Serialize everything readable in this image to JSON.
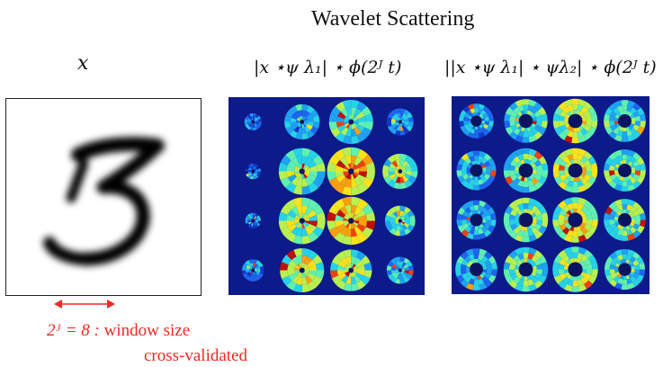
{
  "title": "Wavelet Scattering",
  "columns": [
    {
      "label": "x"
    },
    {
      "label": "|x ⋆ψ λ₁| ⋆ ϕ(2ᴶ t)"
    },
    {
      "label": "||x ⋆ψ λ₁| ⋆ ψλ₂| ⋆ ϕ(2ᴶ t)"
    }
  ],
  "annotation": {
    "math": "2ᴶ = 8 :",
    "line1": "window size",
    "line2": "cross-validated"
  },
  "colors": {
    "annotation": "#ee2a24",
    "panel_background": "#0d1a8a",
    "digit_ink": "#000000"
  },
  "grid": {
    "rows": 4,
    "cols": 4
  }
}
